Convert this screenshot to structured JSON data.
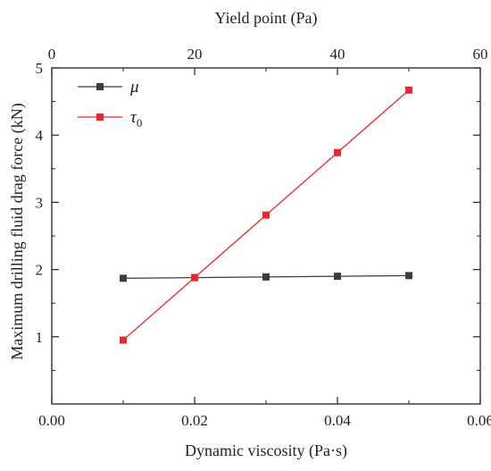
{
  "chart_data": {
    "type": "line",
    "xlabel": "Dynamic viscosity (Pa·s)",
    "x2label": "Yield point (Pa)",
    "ylabel": "Maximum drilling fluid drag force (kN)",
    "xlim": [
      0,
      0.06
    ],
    "x2lim": [
      0,
      60
    ],
    "ylim": [
      0,
      5
    ],
    "xticks": [
      "0.00",
      "0.02",
      "0.04",
      "0.06"
    ],
    "x2ticks": [
      "0",
      "20",
      "40",
      "60"
    ],
    "yticks": [
      "1",
      "2",
      "3",
      "4",
      "5"
    ],
    "grid": false,
    "legend_position": "top-left",
    "series": [
      {
        "name": "μ",
        "color": "#3c3c3c",
        "marker": "square",
        "axis": "bottom",
        "x": [
          0.01,
          0.02,
          0.03,
          0.04,
          0.05
        ],
        "y": [
          1.87,
          1.88,
          1.89,
          1.9,
          1.91
        ]
      },
      {
        "name": "τ",
        "subscript": "0",
        "color": "#e8262b",
        "marker": "square",
        "axis": "top",
        "x": [
          10,
          20,
          30,
          40,
          50
        ],
        "y": [
          0.95,
          1.88,
          2.81,
          3.74,
          4.67
        ]
      }
    ]
  }
}
